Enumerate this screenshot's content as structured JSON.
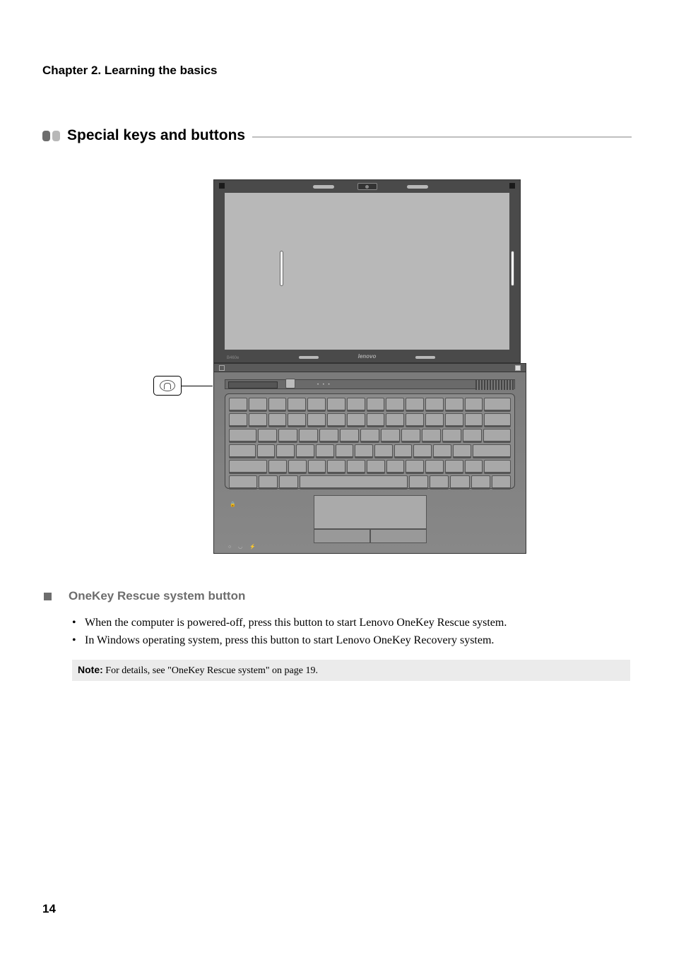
{
  "header": {
    "chapter_title": "Chapter 2. Learning the basics"
  },
  "section": {
    "title": "Special keys and buttons",
    "bullet_colors": [
      "#6d6d6d",
      "#b8b8b8"
    ],
    "dash_color": "#bfbfbf"
  },
  "diagram": {
    "laptop_brand": "lenovo",
    "laptop_model": "B460e",
    "callout_icon": "onekey-rescue-icon",
    "screen_outer_color": "#4a4a4a",
    "screen_inner_color": "#b8b8b8",
    "base_color": "#888888",
    "keyboard_color": "#8a8a8a",
    "key_color": "#a8a8a8"
  },
  "subsection": {
    "title": "OneKey Rescue system button",
    "square_color": "#6d6d6d",
    "title_color": "#6d6d6d"
  },
  "body": {
    "items": [
      "When the computer is powered-off, press this button to start Lenovo OneKey Rescue system.",
      "In Windows operating system, press this button to start Lenovo OneKey Recovery system."
    ]
  },
  "note": {
    "label": "Note:",
    "text": " For details, see \"OneKey Rescue system\" on page 19.",
    "background": "#ebebeb"
  },
  "footer": {
    "page_number": "14"
  },
  "typography": {
    "chapter_title_fontsize": 17,
    "section_title_fontsize": 21,
    "subsection_title_fontsize": 17,
    "body_fontsize": 16,
    "note_fontsize": 14,
    "body_font": "Palatino",
    "heading_font": "Arial"
  }
}
